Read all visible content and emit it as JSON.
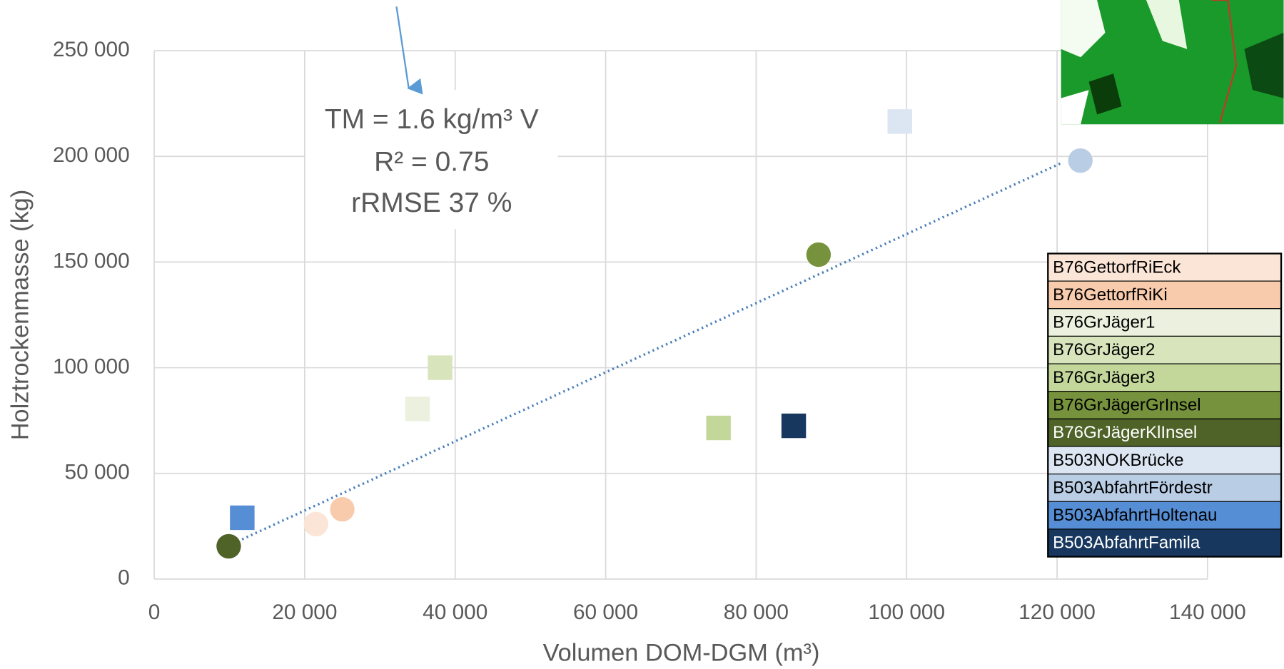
{
  "chart_data": {
    "type": "scatter",
    "xlabel": "Volumen DOM-DGM (m³)",
    "ylabel": "Holztrockenmasse (kg)",
    "xlim": [
      0,
      140000
    ],
    "xticks": [
      0,
      {
        "value": 20000,
        "label": "20 000"
      },
      {
        "value": 40000,
        "label": "40 000"
      },
      {
        "value": 60000,
        "label": "60 000"
      },
      {
        "value": 80000,
        "label": "80 000"
      },
      {
        "value": 100000,
        "label": "100 000"
      },
      {
        "value": 120000,
        "label": "120 000"
      },
      {
        "value": 140000,
        "label": "140 000"
      }
    ],
    "ylim": [
      0,
      250000
    ],
    "yticks": [
      0,
      {
        "value": 50000,
        "label": "50 000"
      },
      {
        "value": 100000,
        "label": "100 000"
      },
      {
        "value": 150000,
        "label": "150 000"
      },
      {
        "value": 200000,
        "label": "200 000"
      },
      {
        "value": 250000,
        "label": "250 000"
      }
    ],
    "grid": true,
    "legend": "right",
    "annotation": [
      "TM = 1.6 kg/m³ V",
      "R² = 0.75",
      "rRMSE 37 %"
    ],
    "trendline": {
      "color": "#4a7ebb",
      "x": [
        9900,
        120400
      ],
      "values": [
        15900,
        196600
      ]
    },
    "series": [
      {
        "name": "B76GettorfRiEck",
        "color": "#fbe5d6",
        "marker": "circle",
        "x": [
          21500
        ],
        "values": [
          26000
        ]
      },
      {
        "name": "B76GettorfRiKi",
        "color": "#f8cbad",
        "marker": "circle",
        "x": [
          25000
        ],
        "values": [
          33000
        ]
      },
      {
        "name": "B76GrJäger1",
        "color": "#ebf1de",
        "marker": "square",
        "x": [
          35000
        ],
        "values": [
          80500
        ]
      },
      {
        "name": "B76GrJäger2",
        "color": "#d8e4bc",
        "marker": "square",
        "x": [
          38000
        ],
        "values": [
          100000
        ]
      },
      {
        "name": "B76GrJäger3",
        "color": "#c4d79b",
        "marker": "square",
        "x": [
          75000
        ],
        "values": [
          71500
        ]
      },
      {
        "name": "B76GrJägerGrInsel",
        "color": "#76923c",
        "marker": "circle",
        "x": [
          88300
        ],
        "values": [
          153500
        ]
      },
      {
        "name": "B76GrJägerKlInsel",
        "color": "#4f6228",
        "marker": "circle",
        "x": [
          9900
        ],
        "values": [
          15500
        ]
      },
      {
        "name": "B503NOKBrücke",
        "color": "#dce6f2",
        "marker": "square",
        "x": [
          99100
        ],
        "values": [
          216500
        ]
      },
      {
        "name": "B503AbfahrtFördestr",
        "color": "#b9cde5",
        "marker": "circle",
        "x": [
          123100
        ],
        "values": [
          198000
        ]
      },
      {
        "name": "B503AbfahrtHoltenau",
        "color": "#558ed5",
        "marker": "square",
        "x": [
          11700
        ],
        "values": [
          29000
        ]
      },
      {
        "name": "B503AbfahrtFamila",
        "color": "#17375e",
        "marker": "square",
        "x": [
          85000
        ],
        "values": [
          72500
        ]
      }
    ]
  }
}
